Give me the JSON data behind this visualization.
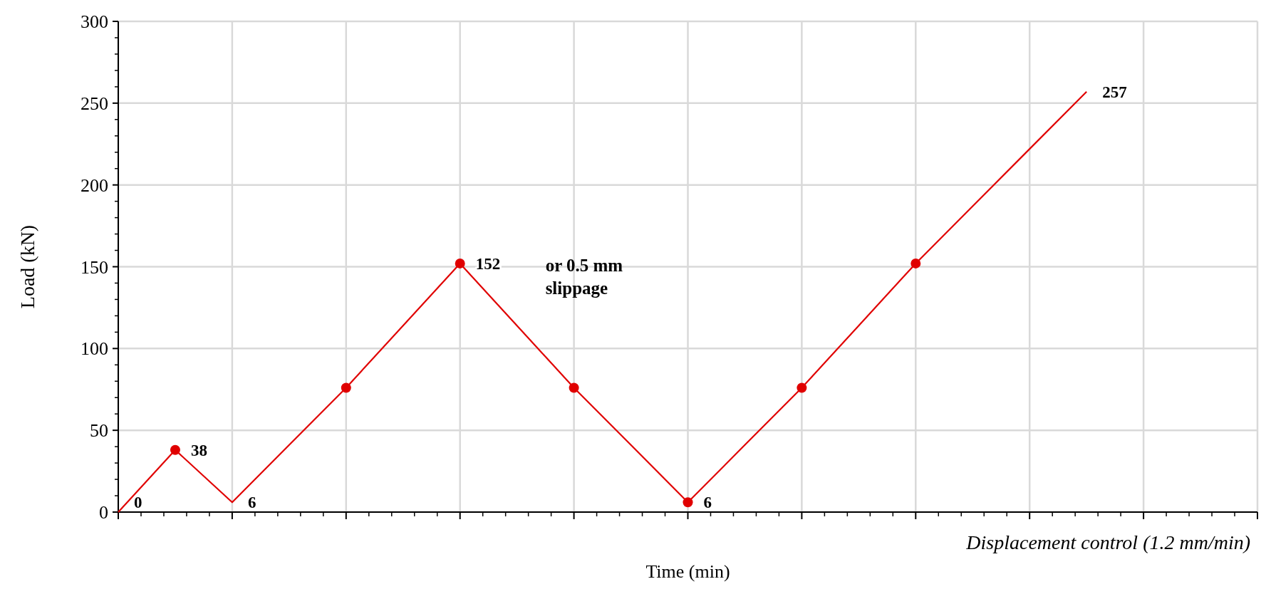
{
  "chart_data": {
    "type": "line",
    "xlabel": "Time (min)",
    "ylabel": "Load (kN)",
    "categories": [
      null,
      null,
      null,
      null,
      null,
      null,
      null,
      null,
      null,
      null,
      null,
      null,
      null,
      null,
      null,
      null,
      null,
      null,
      null,
      null,
      null
    ],
    "ylim": [
      0,
      300
    ],
    "yticks": [
      0,
      50,
      100,
      150,
      200,
      250,
      300
    ],
    "grid": true,
    "series": [
      {
        "color": "#e00000",
        "marker": "none",
        "values": [
          0,
          38,
          6,
          41,
          76,
          114,
          152,
          114,
          76,
          41,
          6,
          41,
          76,
          114,
          152,
          187,
          222,
          257,
          null,
          null,
          null
        ],
        "value_labels": [
          "0",
          "38",
          "6",
          null,
          null,
          null,
          "152",
          null,
          null,
          null,
          "6",
          null,
          null,
          null,
          null,
          null,
          null,
          "257",
          null,
          null,
          null
        ]
      },
      {
        "type": "scatter",
        "color": "#e00000",
        "marker": "circle",
        "values": [
          null,
          38,
          null,
          null,
          76,
          null,
          152,
          null,
          76,
          null,
          6,
          null,
          76,
          null,
          152,
          null,
          null,
          null,
          null,
          null,
          null
        ]
      }
    ],
    "annotations": [
      "or 0.5 mm slippage",
      "Displacement control (1.2 mm/min)"
    ]
  }
}
